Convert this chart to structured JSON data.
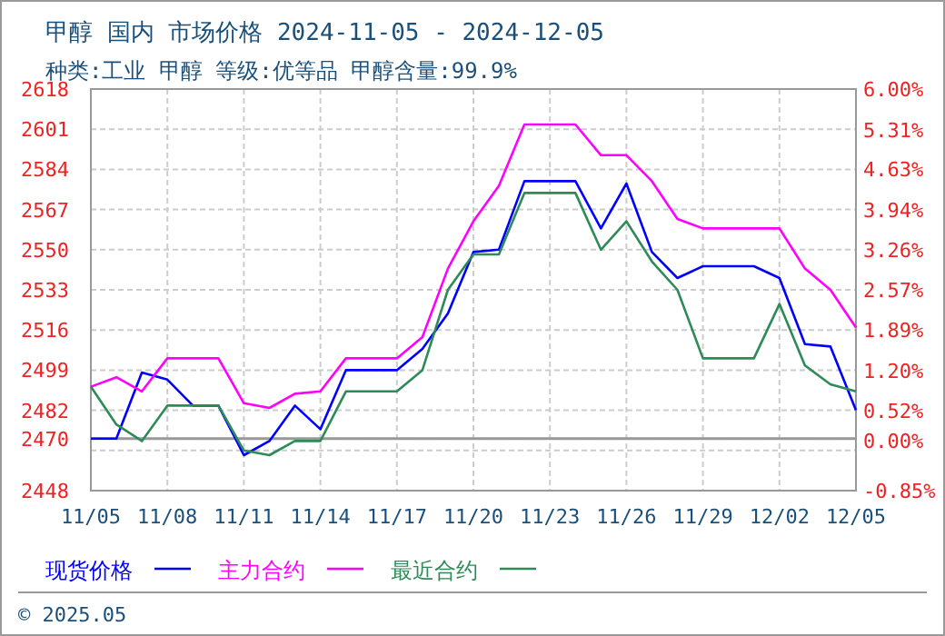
{
  "chart_data": {
    "type": "line",
    "title": "甲醇 国内 市场价格 2024-11-05 - 2024-12-05",
    "subtitle": "种类:工业 甲醇 等级:优等品 甲醇含量:99.9%",
    "x": [
      "2024-11-05",
      "2024-11-06",
      "2024-11-07",
      "2024-11-08",
      "2024-11-09",
      "2024-11-10",
      "2024-11-11",
      "2024-11-12",
      "2024-11-13",
      "2024-11-14",
      "2024-11-15",
      "2024-11-16",
      "2024-11-17",
      "2024-11-18",
      "2024-11-19",
      "2024-11-20",
      "2024-11-21",
      "2024-11-22",
      "2024-11-23",
      "2024-11-24",
      "2024-11-25",
      "2024-11-26",
      "2024-11-27",
      "2024-11-28",
      "2024-11-29",
      "2024-11-30",
      "2024-12-01",
      "2024-12-02",
      "2024-12-03",
      "2024-12-04",
      "2024-12-05"
    ],
    "series": [
      {
        "name": "现货价格",
        "color": "#0000ff",
        "values": [
          2470,
          2470,
          2498,
          2495,
          2484,
          2484,
          2463,
          2469,
          2484,
          2474,
          2499,
          2499,
          2499,
          2508,
          2523,
          2549,
          2550,
          2579,
          2579,
          2579,
          2559,
          2578,
          2549,
          2538,
          2543,
          2543,
          2543,
          2538,
          2510,
          2509,
          2482
        ]
      },
      {
        "name": "主力合约",
        "color": "#ff00ff",
        "values": [
          2492,
          2496,
          2490,
          2504,
          2504,
          2504,
          2485,
          2483,
          2489,
          2490,
          2504,
          2504,
          2504,
          2513,
          2542,
          2562,
          2577,
          2603,
          2603,
          2603,
          2590,
          2590,
          2579,
          2563,
          2559,
          2559,
          2559,
          2559,
          2542,
          2533,
          2517
        ]
      },
      {
        "name": "最近合约",
        "color": "#2e8b57",
        "values": [
          2492,
          2476,
          2469,
          2484,
          2484,
          2484,
          2465,
          2463,
          2469,
          2469,
          2490,
          2490,
          2490,
          2499,
          2533,
          2548,
          2548,
          2574,
          2574,
          2574,
          2550,
          2562,
          2545,
          2533,
          2504,
          2504,
          2504,
          2527,
          2501,
          2493,
          2490
        ]
      }
    ],
    "xlim": [
      "2024-11-05",
      "2024-12-05"
    ],
    "xticks": [
      {
        "value": "2024-11-05",
        "label": "11/05"
      },
      {
        "value": "2024-11-08",
        "label": "11/08"
      },
      {
        "value": "2024-11-11",
        "label": "11/11"
      },
      {
        "value": "2024-11-14",
        "label": "11/14"
      },
      {
        "value": "2024-11-17",
        "label": "11/17"
      },
      {
        "value": "2024-11-20",
        "label": "11/20"
      },
      {
        "value": "2024-11-23",
        "label": "11/23"
      },
      {
        "value": "2024-11-26",
        "label": "11/26"
      },
      {
        "value": "2024-11-29",
        "label": "11/29"
      },
      {
        "value": "2024-12-02",
        "label": "12/02"
      },
      {
        "value": "2024-12-05",
        "label": "12/05"
      }
    ],
    "ylim": [
      2448,
      2618
    ],
    "yticks": [
      2448,
      {
        "value": 2465,
        "label": null
      },
      2470,
      2482,
      2499,
      2516,
      2533,
      2550,
      2567,
      2584,
      2601,
      2618
    ],
    "y2lim": [
      -0.85,
      6.0
    ],
    "y2ticks": [
      {
        "value": -0.85,
        "label": "-0.85%"
      },
      {
        "value": 0,
        "label": "0.00%"
      },
      {
        "value": 0.52,
        "label": "0.52%"
      },
      {
        "value": 1.2,
        "label": "1.20%"
      },
      {
        "value": 1.89,
        "label": "1.89%"
      },
      {
        "value": 2.57,
        "label": "2.57%"
      },
      {
        "value": 3.26,
        "label": "3.26%"
      },
      {
        "value": 3.94,
        "label": "3.94%"
      },
      {
        "value": 4.63,
        "label": "4.63%"
      },
      {
        "value": 5.31,
        "label": "5.31%"
      },
      {
        "value": 6.0,
        "label": "6.00%"
      }
    ],
    "ref_lines": [
      {
        "axis": "y",
        "value": 2470,
        "color": "#999999"
      }
    ],
    "grid": true,
    "legend": "bottom",
    "marker": "none",
    "line_style": "solid",
    "annotations": [
      "© 2025.05"
    ]
  }
}
